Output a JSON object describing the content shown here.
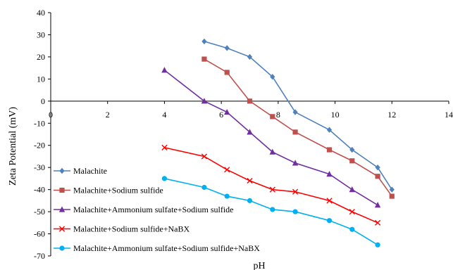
{
  "chart_data": {
    "type": "line",
    "xlabel": "pH",
    "ylabel": "Zeta Potential (mV)",
    "xlim": [
      0,
      14
    ],
    "ylim": [
      -70,
      40
    ],
    "xticks": [
      0,
      2,
      4,
      6,
      8,
      10,
      12,
      14
    ],
    "xtick_labels": [
      "0",
      "2",
      "4",
      "6",
      "8",
      "10",
      "12",
      "14"
    ],
    "yticks": [
      40,
      30,
      20,
      10,
      0,
      -10,
      -20,
      -30,
      -40,
      -50,
      -60,
      -70
    ],
    "ytick_labels": [
      "40",
      "30",
      "20",
      "10",
      "0",
      "-10",
      "-20",
      "-30",
      "-40",
      "-50",
      "-60",
      "-70"
    ],
    "grid": false,
    "legend_position": "bottom-left",
    "series": [
      {
        "name": "Malachite",
        "color": "#4F81BD",
        "marker": "diamond",
        "x": [
          5.4,
          6.2,
          7.0,
          7.8,
          8.6,
          9.8,
          10.6,
          11.5,
          12.0
        ],
        "y": [
          27,
          24,
          20,
          11,
          -5,
          -13,
          -22,
          -30,
          -40
        ]
      },
      {
        "name": "Malachite+Sodium sulfide",
        "color": "#C0504D",
        "marker": "square",
        "x": [
          5.4,
          6.2,
          7.0,
          7.8,
          8.6,
          9.8,
          10.6,
          11.5,
          12.0
        ],
        "y": [
          19,
          13,
          0,
          -7,
          -14,
          -22,
          -27,
          -34,
          -43
        ]
      },
      {
        "name": "Malachite+Ammonium sulfate+Sodium sulfide",
        "color": "#7030A0",
        "marker": "triangle",
        "x": [
          4.0,
          5.4,
          6.2,
          7.0,
          7.8,
          8.6,
          9.8,
          10.6,
          11.5
        ],
        "y": [
          14,
          0,
          -5,
          -14,
          -23,
          -28,
          -33,
          -40,
          -47
        ]
      },
      {
        "name": "Malachite+Sodium sulfide+NaBX",
        "color": "#FF0000",
        "marker": "x",
        "x": [
          4.0,
          5.4,
          6.2,
          7.0,
          7.8,
          8.6,
          9.8,
          10.6,
          11.5
        ],
        "y": [
          -21,
          -25,
          -31,
          -36,
          -40,
          -41,
          -45,
          -50,
          -55
        ]
      },
      {
        "name": "Malachite+Ammonium sulfate+Sodium sulfide+NaBX",
        "color": "#00B0F0",
        "marker": "circle",
        "x": [
          4.0,
          5.4,
          6.2,
          7.0,
          7.8,
          8.6,
          9.8,
          10.6,
          11.5
        ],
        "y": [
          -35,
          -39,
          -43,
          -45,
          -49,
          -50,
          -54,
          -58,
          -65
        ]
      }
    ]
  }
}
